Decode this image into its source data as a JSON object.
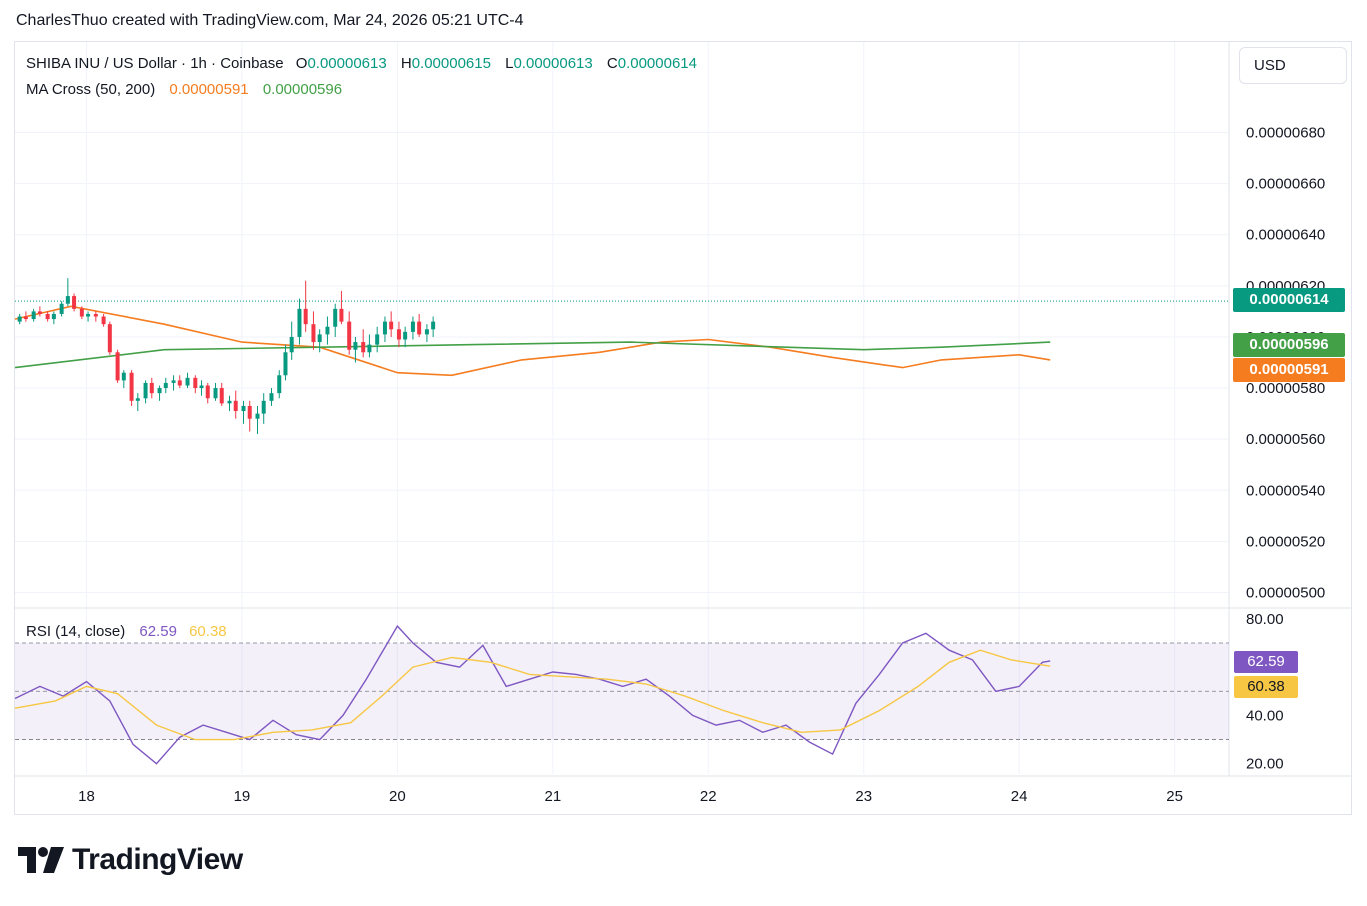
{
  "header": {
    "attribution": "CharlesThuo created with TradingView.com, Mar 24, 2026 05:21 UTC-4"
  },
  "legend": {
    "symbol": "SHIBA INU / US Dollar · 1h · Coinbase",
    "o_key": "O",
    "o_val": "0.00000613",
    "h_key": "H",
    "h_val": "0.00000615",
    "l_key": "L",
    "l_val": "0.00000613",
    "c_key": "C",
    "c_val": "0.00000614",
    "ma_name": "MA Cross (50, 200)",
    "ma50_val": "0.00000591",
    "ma200_val": "0.00000596",
    "rsi_name": "RSI (14, close)",
    "rsi_val": "62.59",
    "rsi_ma_val": "60.38"
  },
  "toolbar": {
    "currency_label": "USD"
  },
  "price_tags": {
    "last": "0.00000614",
    "ma200": "0.00000596",
    "ma50": "0.00000591"
  },
  "rsi_tags": {
    "rsi": "62.59",
    "rsi_ma": "60.38"
  },
  "brand": {
    "name": "TradingView"
  },
  "colors": {
    "up": "#089981",
    "down": "#f23645",
    "ma50": "#f57c1f",
    "ma200": "#43a047",
    "rsi": "#7e57c2",
    "rsi_ma": "#f7c744",
    "rsi_band": "#7e57c2"
  },
  "chart_data": [
    {
      "type": "candlestick",
      "title": "SHIBA INU / US Dollar · 1h · Coinbase",
      "x_ticks": [
        "18",
        "19",
        "20",
        "21",
        "22",
        "23",
        "24",
        "25"
      ],
      "x_range_days": [
        17.54,
        25.35
      ],
      "y_ticks": [
        "0.00000500",
        "0.00000520",
        "0.00000540",
        "0.00000560",
        "0.00000580",
        "0.00000600",
        "0.00000620",
        "0.00000640",
        "0.00000660",
        "0.00000680"
      ],
      "y_range": [
        4.947e-06,
        6.99e-06
      ],
      "last_price": 6.14e-06,
      "series": [
        {
          "name": "MA 50",
          "values_key": "ma50",
          "points": [
            [
              17.54,
              6.07e-06
            ],
            [
              17.9,
              6.12e-06
            ],
            [
              18.5,
              6.05e-06
            ],
            [
              19.0,
              5.98e-06
            ],
            [
              19.5,
              5.96e-06
            ],
            [
              20.0,
              5.86e-06
            ],
            [
              20.35,
              5.85e-06
            ],
            [
              20.8,
              5.91e-06
            ],
            [
              21.3,
              5.94e-06
            ],
            [
              21.7,
              5.98e-06
            ],
            [
              22.0,
              5.99e-06
            ],
            [
              22.4,
              5.96e-06
            ],
            [
              22.8,
              5.92e-06
            ],
            [
              23.25,
              5.88e-06
            ],
            [
              23.5,
              5.91e-06
            ],
            [
              24.0,
              5.93e-06
            ],
            [
              24.2,
              5.91e-06
            ]
          ]
        },
        {
          "name": "MA 200",
          "values_key": "ma200",
          "points": [
            [
              17.54,
              5.88e-06
            ],
            [
              18.5,
              5.95e-06
            ],
            [
              19.5,
              5.96e-06
            ],
            [
              20.5,
              5.97e-06
            ],
            [
              21.5,
              5.98e-06
            ],
            [
              22.5,
              5.96e-06
            ],
            [
              23.0,
              5.95e-06
            ],
            [
              23.5,
              5.96e-06
            ],
            [
              24.2,
              5.98e-06
            ]
          ]
        }
      ],
      "candles": [
        [
          17.57,
          606,
          609,
          605,
          608
        ],
        [
          17.61,
          608,
          610,
          606,
          607
        ],
        [
          17.66,
          607,
          611,
          606,
          610
        ],
        [
          17.7,
          610,
          612,
          608,
          609
        ],
        [
          17.75,
          609,
          610,
          606,
          607
        ],
        [
          17.79,
          607,
          610,
          605,
          609
        ],
        [
          17.84,
          609,
          614,
          608,
          613
        ],
        [
          17.88,
          613,
          623,
          612,
          616
        ],
        [
          17.92,
          616,
          617,
          610,
          611
        ],
        [
          17.97,
          611,
          612,
          607,
          608
        ],
        [
          18.01,
          608,
          610,
          606,
          609
        ],
        [
          18.06,
          609,
          610,
          606,
          608
        ],
        [
          18.11,
          608,
          609,
          604,
          605
        ],
        [
          18.15,
          605,
          606,
          593,
          594
        ],
        [
          18.2,
          594,
          595,
          582,
          583
        ],
        [
          18.24,
          583,
          587,
          580,
          586
        ],
        [
          18.29,
          586,
          587,
          573,
          575
        ],
        [
          18.33,
          575,
          578,
          571,
          576
        ],
        [
          18.38,
          576,
          583,
          574,
          582
        ],
        [
          18.42,
          582,
          584,
          576,
          578
        ],
        [
          18.47,
          578,
          581,
          575,
          580
        ],
        [
          18.51,
          580,
          584,
          578,
          582
        ],
        [
          18.56,
          582,
          585,
          579,
          583
        ],
        [
          18.6,
          583,
          585,
          580,
          581
        ],
        [
          18.65,
          581,
          586,
          580,
          584
        ],
        [
          18.7,
          584,
          585,
          578,
          580
        ],
        [
          18.74,
          580,
          583,
          577,
          581
        ],
        [
          18.78,
          581,
          582,
          574,
          576
        ],
        [
          18.83,
          576,
          582,
          575,
          580
        ],
        [
          18.87,
          580,
          582,
          573,
          574
        ],
        [
          18.92,
          574,
          577,
          571,
          575
        ],
        [
          18.96,
          575,
          579,
          568,
          571
        ],
        [
          19.01,
          571,
          575,
          566,
          573
        ],
        [
          19.05,
          573,
          575,
          563,
          568
        ],
        [
          19.1,
          568,
          573,
          562,
          570
        ],
        [
          19.14,
          570,
          578,
          566,
          575
        ],
        [
          19.19,
          575,
          580,
          573,
          578
        ],
        [
          19.24,
          578,
          587,
          576,
          585
        ],
        [
          19.28,
          585,
          597,
          583,
          594
        ],
        [
          19.32,
          594,
          606,
          591,
          600
        ],
        [
          19.37,
          600,
          615,
          597,
          611
        ],
        [
          19.41,
          611,
          622,
          602,
          605
        ],
        [
          19.46,
          605,
          610,
          595,
          598
        ],
        [
          19.5,
          598,
          603,
          594,
          601
        ],
        [
          19.55,
          601,
          608,
          597,
          604
        ],
        [
          19.6,
          604,
          613,
          600,
          611
        ],
        [
          19.64,
          611,
          618,
          605,
          606
        ],
        [
          19.69,
          606,
          610,
          593,
          595
        ],
        [
          19.73,
          595,
          600,
          590,
          598
        ],
        [
          19.78,
          598,
          603,
          592,
          594
        ],
        [
          19.82,
          594,
          601,
          592,
          597
        ],
        [
          19.87,
          597,
          604,
          594,
          601
        ],
        [
          19.92,
          601,
          608,
          598,
          606
        ],
        [
          19.96,
          606,
          610,
          600,
          603
        ],
        [
          20.01,
          603,
          606,
          596,
          599
        ],
        [
          20.05,
          599,
          604,
          596,
          602
        ],
        [
          20.1,
          602,
          608,
          599,
          606
        ],
        [
          20.14,
          606,
          609,
          600,
          601
        ],
        [
          20.19,
          601,
          605,
          598,
          603
        ],
        [
          20.23,
          603,
          608,
          600,
          606
        ]
      ]
    },
    {
      "type": "line",
      "title": "RSI (14, close)",
      "y_ticks": [
        "20.00",
        "40.00",
        "80.00"
      ],
      "y_range": [
        17.4,
        82.0
      ],
      "bands": [
        30,
        50,
        70
      ],
      "series": [
        {
          "name": "RSI",
          "last": 62.59,
          "points": [
            [
              17.54,
              47
            ],
            [
              17.7,
              52
            ],
            [
              17.85,
              48
            ],
            [
              18.0,
              54
            ],
            [
              18.15,
              46
            ],
            [
              18.3,
              28
            ],
            [
              18.45,
              20
            ],
            [
              18.6,
              31
            ],
            [
              18.75,
              36
            ],
            [
              18.9,
              33
            ],
            [
              19.05,
              30
            ],
            [
              19.2,
              38
            ],
            [
              19.35,
              32
            ],
            [
              19.5,
              30
            ],
            [
              19.65,
              40
            ],
            [
              19.8,
              55
            ],
            [
              20.0,
              77
            ],
            [
              20.1,
              70
            ],
            [
              20.25,
              62
            ],
            [
              20.4,
              60
            ],
            [
              20.55,
              69
            ],
            [
              20.7,
              52
            ],
            [
              20.85,
              55
            ],
            [
              21.0,
              58
            ],
            [
              21.15,
              57
            ],
            [
              21.3,
              55
            ],
            [
              21.45,
              52
            ],
            [
              21.6,
              55
            ],
            [
              21.75,
              48
            ],
            [
              21.9,
              40
            ],
            [
              22.05,
              36
            ],
            [
              22.2,
              38
            ],
            [
              22.35,
              33
            ],
            [
              22.5,
              36
            ],
            [
              22.65,
              29
            ],
            [
              22.8,
              24
            ],
            [
              22.95,
              45
            ],
            [
              23.1,
              57
            ],
            [
              23.25,
              70
            ],
            [
              23.4,
              74
            ],
            [
              23.55,
              67
            ],
            [
              23.7,
              63
            ],
            [
              23.85,
              50
            ],
            [
              24.0,
              52
            ],
            [
              24.15,
              62
            ],
            [
              24.2,
              62.59
            ]
          ]
        },
        {
          "name": "RSI MA",
          "last": 60.38,
          "points": [
            [
              17.54,
              43
            ],
            [
              17.8,
              46
            ],
            [
              18.0,
              52
            ],
            [
              18.2,
              49
            ],
            [
              18.45,
              36
            ],
            [
              18.7,
              30
            ],
            [
              18.95,
              30
            ],
            [
              19.2,
              33
            ],
            [
              19.45,
              34
            ],
            [
              19.7,
              37
            ],
            [
              19.9,
              48
            ],
            [
              20.1,
              60
            ],
            [
              20.35,
              64
            ],
            [
              20.6,
              62
            ],
            [
              20.85,
              57
            ],
            [
              21.1,
              56
            ],
            [
              21.35,
              55
            ],
            [
              21.6,
              53
            ],
            [
              21.85,
              48
            ],
            [
              22.1,
              42
            ],
            [
              22.35,
              37
            ],
            [
              22.6,
              33
            ],
            [
              22.85,
              34
            ],
            [
              23.1,
              42
            ],
            [
              23.35,
              52
            ],
            [
              23.55,
              62
            ],
            [
              23.75,
              67
            ],
            [
              23.95,
              63
            ],
            [
              24.2,
              60.38
            ]
          ]
        }
      ]
    }
  ]
}
